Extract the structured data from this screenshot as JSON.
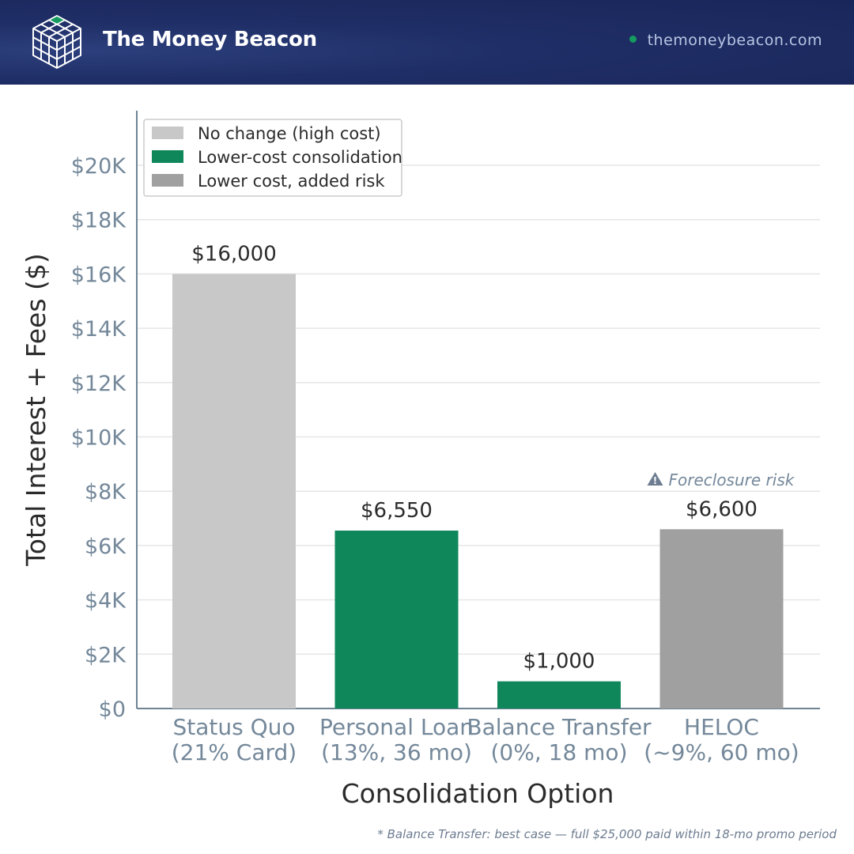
{
  "header": {
    "brand": "The Money Beacon",
    "site": "themoneybeacon.com",
    "logo_icon": "cube-grid-icon",
    "colors": {
      "bar": "#19265a",
      "dot": "#159a5f",
      "cube_top": "#159a5f"
    }
  },
  "chart_data": {
    "type": "bar",
    "xlabel": "Consolidation Option",
    "ylabel": "Total Interest + Fees ($)",
    "ylim": [
      0,
      22000
    ],
    "yticks": [
      0,
      2000,
      4000,
      6000,
      8000,
      10000,
      12000,
      14000,
      16000,
      18000,
      20000
    ],
    "ytick_labels": [
      "$0",
      "$2K",
      "$4K",
      "$6K",
      "$8K",
      "$10K",
      "$12K",
      "$14K",
      "$16K",
      "$18K",
      "$20K"
    ],
    "grid": true,
    "legend_position": "top-left",
    "categories": [
      [
        "Status Quo",
        "(21% Card)"
      ],
      [
        "Personal Loan",
        "(13%, 36 mo)"
      ],
      [
        "Balance Transfer",
        "(0%, 18 mo)"
      ],
      [
        "HELOC",
        "(~9%, 60 mo)"
      ]
    ],
    "values": [
      16000,
      6550,
      1000,
      6600
    ],
    "value_labels": [
      "$16,000",
      "$6,550",
      "$1,000",
      "$6,600"
    ],
    "groups": [
      "No change (high cost)",
      "Lower-cost consolidation",
      "Lower-cost consolidation",
      "Lower cost, added risk"
    ],
    "legend": [
      {
        "label": "No change (high cost)",
        "color": "#c8c8c8"
      },
      {
        "label": "Lower-cost consolidation",
        "color": "#0f875a"
      },
      {
        "label": "Lower cost, added risk",
        "color": "#a0a0a0"
      }
    ],
    "annotations": [
      {
        "category_index": 3,
        "icon": "warning-icon",
        "text": "Foreclosure risk"
      }
    ]
  },
  "footnote": "* Balance Transfer: best case — full $25,000 paid within 18-mo promo period"
}
